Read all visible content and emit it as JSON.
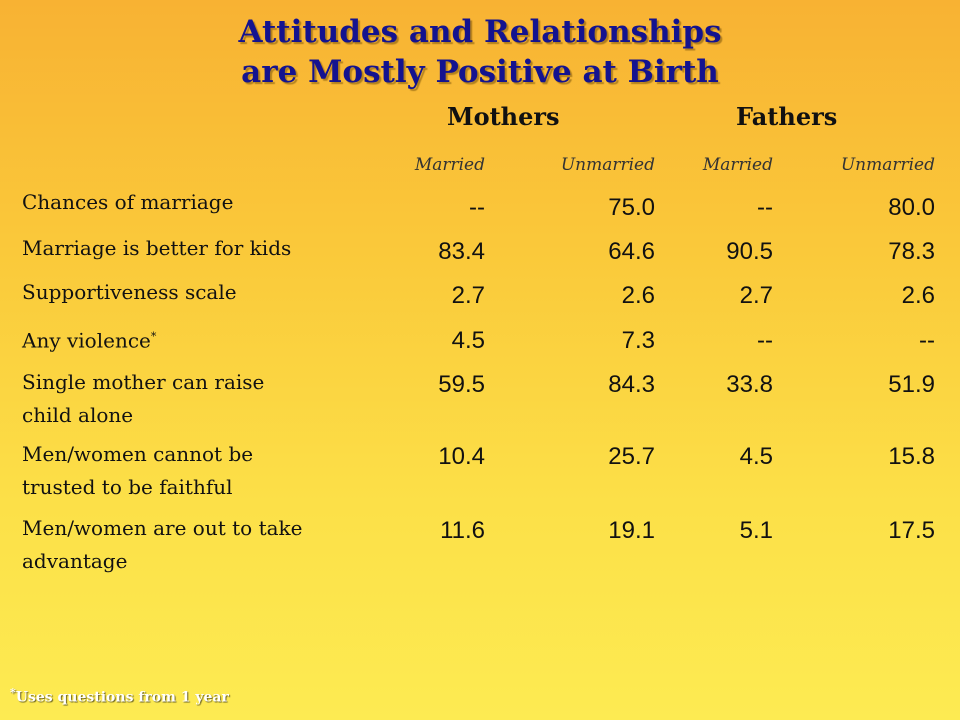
{
  "title": {
    "line1": "Attitudes and Relationships",
    "line2": "are Mostly Positive at Birth"
  },
  "groups": {
    "mothers": "Mothers",
    "fathers": "Fathers"
  },
  "subheaders": {
    "m_married": "Married",
    "m_unmarried": "Unmarried",
    "f_married": "Married",
    "f_unmarried": "Unmarried"
  },
  "rows": [
    {
      "label": "Chances of marriage",
      "values": [
        "--",
        "75.0",
        "--",
        "80.0"
      ]
    },
    {
      "label": "Marriage is better for kids",
      "values": [
        "83.4",
        "64.6",
        "90.5",
        "78.3"
      ]
    },
    {
      "label": "Supportiveness scale",
      "values": [
        "2.7",
        "2.6",
        "2.7",
        "2.6"
      ]
    },
    {
      "label": "Any violence",
      "footnote_mark": "*",
      "values": [
        "4.5",
        "7.3",
        "--",
        "--"
      ]
    },
    {
      "label_lines": [
        "Single mother can raise",
        "child alone"
      ],
      "values": [
        "59.5",
        "84.3",
        "33.8",
        "51.9"
      ]
    },
    {
      "label_lines": [
        "Men/women cannot be",
        "trusted to be faithful"
      ],
      "values": [
        "10.4",
        "25.7",
        "4.5",
        "15.8"
      ]
    },
    {
      "label_lines": [
        "Men/women are out to take",
        "advantage"
      ],
      "values": [
        "11.6",
        "19.1",
        "5.1",
        "17.5"
      ]
    }
  ],
  "footnote": {
    "mark": "*",
    "text": "Uses questions from 1 year"
  }
}
